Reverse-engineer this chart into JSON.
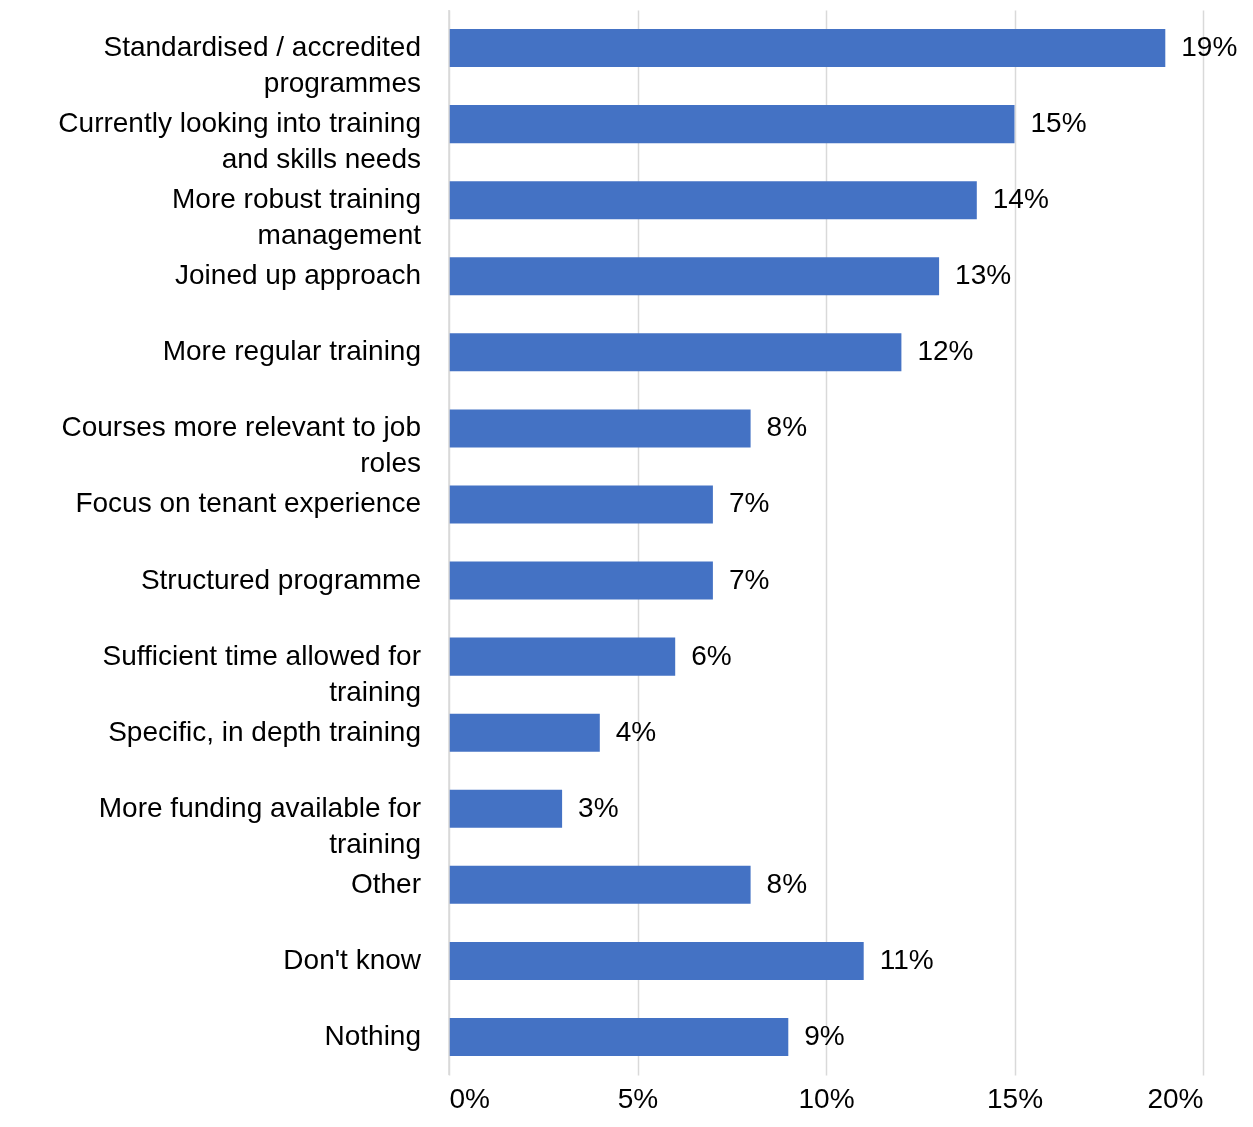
{
  "chart_data": {
    "type": "bar",
    "orientation": "horizontal",
    "categories": [
      "Standardised / accredited\nprogrammes",
      "Currently looking into training\nand skills needs",
      "More robust training\nmanagement",
      "Joined up approach",
      "More regular training",
      "Courses more relevant to job\nroles",
      "Focus on tenant experience",
      "Structured programme",
      "Sufficient time allowed for\ntraining",
      "Specific, in depth training",
      "More funding available for\ntraining",
      "Other",
      "Don't know",
      "Nothing"
    ],
    "values": [
      19,
      15,
      14,
      13,
      12,
      8,
      7,
      7,
      6,
      4,
      3,
      8,
      11,
      9
    ],
    "value_labels": [
      "19%",
      "15%",
      "14%",
      "13%",
      "12%",
      "8%",
      "7%",
      "7%",
      "6%",
      "4%",
      "3%",
      "8%",
      "11%",
      "9%"
    ],
    "color": "#4472c4",
    "xlim": [
      0,
      20
    ],
    "xticks": [
      {
        "value": 0,
        "label": "0%"
      },
      {
        "value": 5,
        "label": "5%"
      },
      {
        "value": 10,
        "label": "10%"
      },
      {
        "value": 15,
        "label": "15%"
      },
      {
        "value": 20,
        "label": "20%"
      }
    ],
    "grid": "x"
  }
}
